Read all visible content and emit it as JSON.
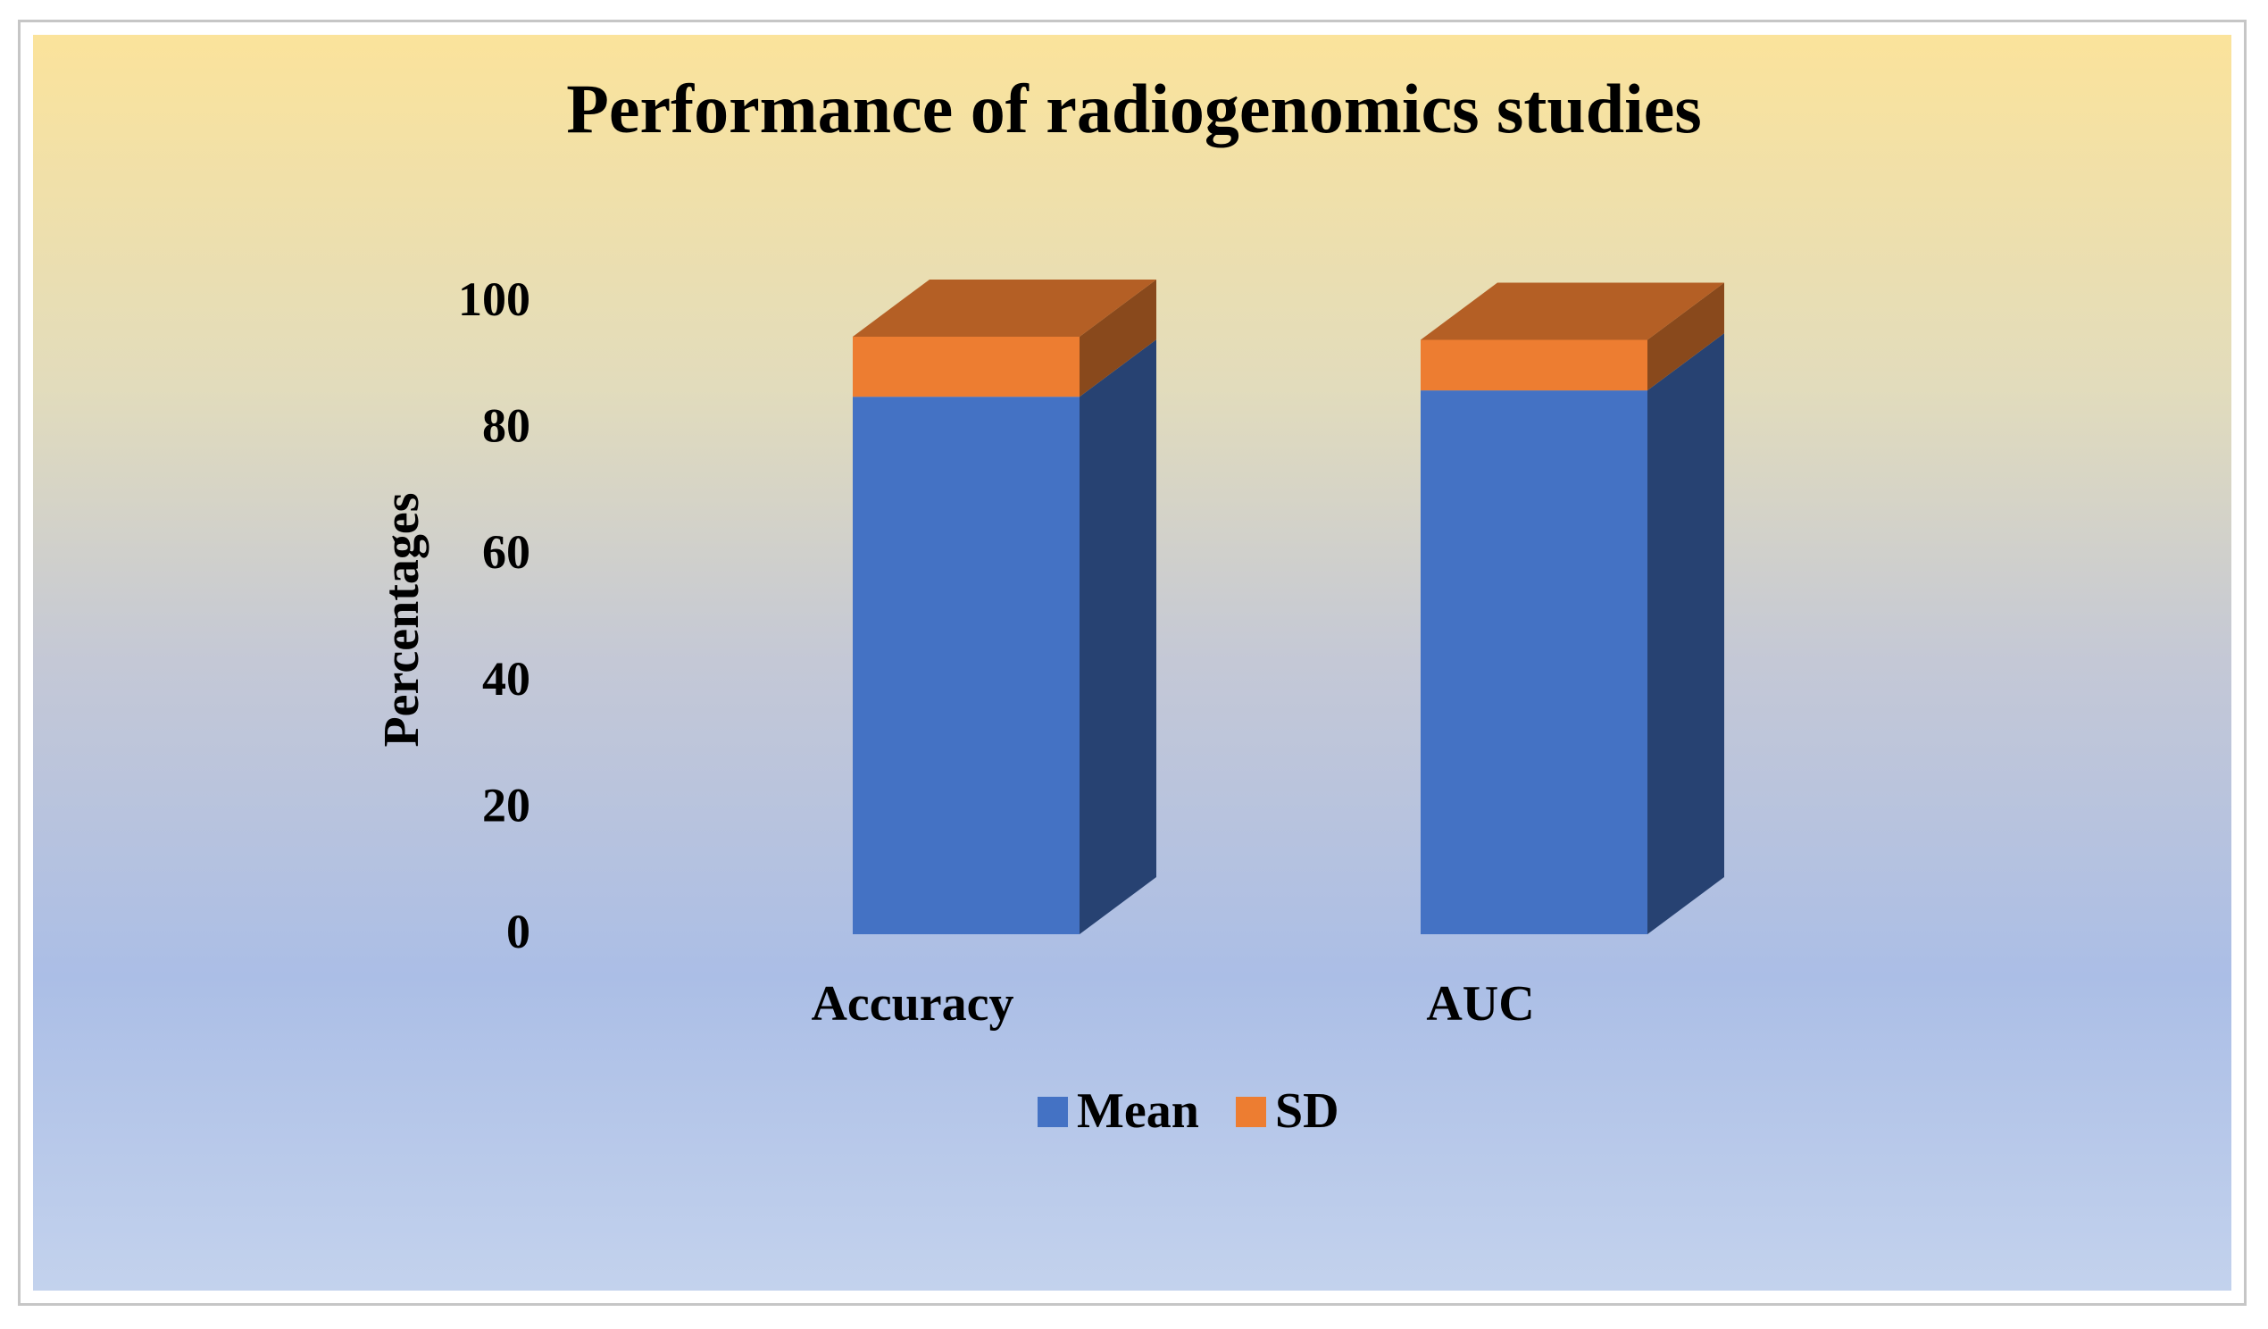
{
  "chart_data": {
    "type": "bar",
    "stacked": true,
    "three_d": true,
    "title": "Performance of radiogenomics studies",
    "xlabel": "",
    "ylabel": "Percentages",
    "categories": [
      "Accuracy",
      "AUC"
    ],
    "series": [
      {
        "name": "Mean",
        "values": [
          85,
          86
        ],
        "color": "#4472c4"
      },
      {
        "name": "SD",
        "values": [
          9.5,
          8
        ],
        "color": "#ed7d31"
      }
    ],
    "ylim": [
      0,
      100
    ],
    "yticks": [
      "0",
      "20",
      "40",
      "60",
      "80",
      "100"
    ],
    "grid": false,
    "legend": "bottom",
    "background": "gradient gold-to-blue"
  }
}
